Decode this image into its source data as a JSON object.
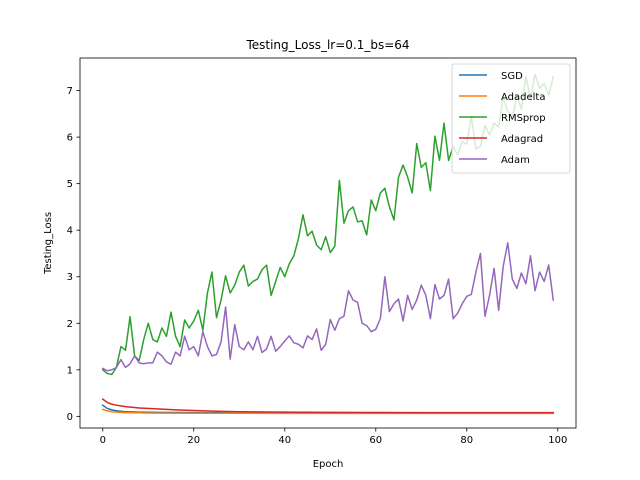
{
  "chart_data": {
    "type": "line",
    "title": "Testing_Loss_lr=0.1_bs=64",
    "xlabel": "Epoch",
    "ylabel": "Testing_Loss",
    "xlim": [
      -5,
      104
    ],
    "ylim": [
      -0.25,
      7.7
    ],
    "xticks": [
      0,
      20,
      40,
      60,
      80,
      100
    ],
    "yticks": [
      0,
      1,
      2,
      3,
      4,
      5,
      6,
      7
    ],
    "grid": false,
    "legend_position": "top-right",
    "series": [
      {
        "name": "SGD",
        "color": "#1f77b4",
        "points": [
          [
            0,
            0.24
          ],
          [
            1,
            0.17
          ],
          [
            2,
            0.14
          ],
          [
            3,
            0.12
          ],
          [
            5,
            0.1
          ],
          [
            8,
            0.09
          ],
          [
            12,
            0.085
          ],
          [
            20,
            0.08
          ],
          [
            30,
            0.075
          ],
          [
            40,
            0.072
          ],
          [
            60,
            0.07
          ],
          [
            80,
            0.07
          ],
          [
            99,
            0.07
          ]
        ]
      },
      {
        "name": "Adadelta",
        "color": "#ff7f0e",
        "points": [
          [
            0,
            0.15
          ],
          [
            1,
            0.12
          ],
          [
            2,
            0.1
          ],
          [
            3,
            0.09
          ],
          [
            5,
            0.08
          ],
          [
            8,
            0.075
          ],
          [
            12,
            0.07
          ],
          [
            20,
            0.068
          ],
          [
            30,
            0.066
          ],
          [
            40,
            0.065
          ],
          [
            60,
            0.064
          ],
          [
            80,
            0.064
          ],
          [
            99,
            0.064
          ]
        ]
      },
      {
        "name": "RMSprop",
        "color": "#2ca02c",
        "points": [
          [
            0,
            1.0
          ],
          [
            1,
            0.92
          ],
          [
            2,
            0.9
          ],
          [
            3,
            1.05
          ],
          [
            4,
            1.5
          ],
          [
            5,
            1.42
          ],
          [
            6,
            2.14
          ],
          [
            7,
            1.3
          ],
          [
            8,
            1.2
          ],
          [
            9,
            1.65
          ],
          [
            10,
            2.0
          ],
          [
            11,
            1.65
          ],
          [
            12,
            1.6
          ],
          [
            13,
            1.9
          ],
          [
            14,
            1.72
          ],
          [
            15,
            2.24
          ],
          [
            16,
            1.72
          ],
          [
            17,
            1.5
          ],
          [
            18,
            2.07
          ],
          [
            19,
            1.9
          ],
          [
            20,
            2.05
          ],
          [
            21,
            2.28
          ],
          [
            22,
            1.85
          ],
          [
            23,
            2.65
          ],
          [
            24,
            3.1
          ],
          [
            25,
            2.12
          ],
          [
            26,
            2.5
          ],
          [
            27,
            3.02
          ],
          [
            28,
            2.65
          ],
          [
            29,
            2.82
          ],
          [
            30,
            3.1
          ],
          [
            31,
            3.25
          ],
          [
            32,
            2.8
          ],
          [
            33,
            2.9
          ],
          [
            34,
            2.95
          ],
          [
            35,
            3.15
          ],
          [
            36,
            3.25
          ],
          [
            37,
            2.6
          ],
          [
            38,
            2.9
          ],
          [
            39,
            3.2
          ],
          [
            40,
            3.0
          ],
          [
            41,
            3.28
          ],
          [
            42,
            3.45
          ],
          [
            43,
            3.82
          ],
          [
            44,
            4.33
          ],
          [
            45,
            3.88
          ],
          [
            46,
            3.98
          ],
          [
            47,
            3.68
          ],
          [
            48,
            3.58
          ],
          [
            49,
            3.86
          ],
          [
            50,
            3.52
          ],
          [
            51,
            3.66
          ],
          [
            52,
            5.07
          ],
          [
            53,
            4.15
          ],
          [
            54,
            4.42
          ],
          [
            55,
            4.5
          ],
          [
            56,
            4.18
          ],
          [
            57,
            4.2
          ],
          [
            58,
            3.9
          ],
          [
            59,
            4.65
          ],
          [
            60,
            4.42
          ],
          [
            61,
            4.8
          ],
          [
            62,
            4.9
          ],
          [
            63,
            4.5
          ],
          [
            64,
            4.22
          ],
          [
            65,
            5.14
          ],
          [
            66,
            5.4
          ],
          [
            67,
            5.14
          ],
          [
            68,
            4.8
          ],
          [
            69,
            5.86
          ],
          [
            70,
            5.35
          ],
          [
            71,
            5.45
          ],
          [
            72,
            4.85
          ],
          [
            73,
            6.02
          ],
          [
            74,
            5.5
          ],
          [
            75,
            6.3
          ],
          [
            76,
            5.5
          ],
          [
            77,
            5.8
          ],
          [
            78,
            5.62
          ],
          [
            79,
            5.9
          ],
          [
            80,
            5.85
          ],
          [
            81,
            6.45
          ],
          [
            82,
            5.75
          ],
          [
            83,
            5.8
          ],
          [
            84,
            6.25
          ],
          [
            85,
            6.05
          ],
          [
            86,
            6.3
          ],
          [
            87,
            6.22
          ],
          [
            88,
            6.85
          ],
          [
            89,
            6.55
          ],
          [
            90,
            6.42
          ],
          [
            91,
            6.88
          ],
          [
            92,
            6.6
          ],
          [
            93,
            7.3
          ],
          [
            94,
            6.82
          ],
          [
            95,
            7.35
          ],
          [
            96,
            7.05
          ],
          [
            97,
            7.15
          ],
          [
            98,
            6.9
          ],
          [
            99,
            7.3
          ]
        ]
      },
      {
        "name": "Adagrad",
        "color": "#d62728",
        "points": [
          [
            0,
            0.37
          ],
          [
            1,
            0.3
          ],
          [
            2,
            0.26
          ],
          [
            3,
            0.24
          ],
          [
            5,
            0.21
          ],
          [
            8,
            0.18
          ],
          [
            12,
            0.16
          ],
          [
            16,
            0.14
          ],
          [
            20,
            0.125
          ],
          [
            25,
            0.11
          ],
          [
            30,
            0.1
          ],
          [
            40,
            0.09
          ],
          [
            50,
            0.085
          ],
          [
            60,
            0.082
          ],
          [
            70,
            0.08
          ],
          [
            80,
            0.08
          ],
          [
            90,
            0.08
          ],
          [
            99,
            0.08
          ]
        ]
      },
      {
        "name": "Adam",
        "color": "#9467bd",
        "points": [
          [
            0,
            1.03
          ],
          [
            1,
            0.98
          ],
          [
            2,
            1.0
          ],
          [
            3,
            1.05
          ],
          [
            4,
            1.22
          ],
          [
            5,
            1.05
          ],
          [
            6,
            1.13
          ],
          [
            7,
            1.3
          ],
          [
            8,
            1.15
          ],
          [
            9,
            1.13
          ],
          [
            10,
            1.15
          ],
          [
            11,
            1.15
          ],
          [
            12,
            1.38
          ],
          [
            13,
            1.3
          ],
          [
            14,
            1.17
          ],
          [
            15,
            1.12
          ],
          [
            16,
            1.38
          ],
          [
            17,
            1.3
          ],
          [
            18,
            1.72
          ],
          [
            19,
            1.43
          ],
          [
            20,
            1.5
          ],
          [
            21,
            1.3
          ],
          [
            22,
            1.82
          ],
          [
            23,
            1.5
          ],
          [
            24,
            1.3
          ],
          [
            25,
            1.33
          ],
          [
            26,
            1.6
          ],
          [
            27,
            2.35
          ],
          [
            28,
            1.23
          ],
          [
            29,
            1.97
          ],
          [
            30,
            1.5
          ],
          [
            31,
            1.43
          ],
          [
            32,
            1.6
          ],
          [
            33,
            1.43
          ],
          [
            34,
            1.72
          ],
          [
            35,
            1.37
          ],
          [
            36,
            1.45
          ],
          [
            37,
            1.72
          ],
          [
            38,
            1.4
          ],
          [
            39,
            1.5
          ],
          [
            40,
            1.62
          ],
          [
            41,
            1.73
          ],
          [
            42,
            1.58
          ],
          [
            43,
            1.55
          ],
          [
            44,
            1.47
          ],
          [
            45,
            1.73
          ],
          [
            46,
            1.65
          ],
          [
            47,
            1.88
          ],
          [
            48,
            1.42
          ],
          [
            49,
            1.55
          ],
          [
            50,
            2.08
          ],
          [
            51,
            1.85
          ],
          [
            52,
            2.1
          ],
          [
            53,
            2.15
          ],
          [
            54,
            2.7
          ],
          [
            55,
            2.5
          ],
          [
            56,
            2.45
          ],
          [
            57,
            2.0
          ],
          [
            58,
            1.95
          ],
          [
            59,
            1.82
          ],
          [
            60,
            1.87
          ],
          [
            61,
            2.1
          ],
          [
            62,
            3.0
          ],
          [
            63,
            2.25
          ],
          [
            64,
            2.42
          ],
          [
            65,
            2.52
          ],
          [
            66,
            2.05
          ],
          [
            67,
            2.6
          ],
          [
            68,
            2.3
          ],
          [
            69,
            2.5
          ],
          [
            70,
            2.82
          ],
          [
            71,
            2.6
          ],
          [
            72,
            2.1
          ],
          [
            73,
            2.83
          ],
          [
            74,
            2.52
          ],
          [
            75,
            2.6
          ],
          [
            76,
            2.95
          ],
          [
            77,
            2.1
          ],
          [
            78,
            2.22
          ],
          [
            79,
            2.42
          ],
          [
            80,
            2.58
          ],
          [
            81,
            2.62
          ],
          [
            82,
            3.1
          ],
          [
            83,
            3.5
          ],
          [
            84,
            2.15
          ],
          [
            85,
            2.6
          ],
          [
            86,
            3.18
          ],
          [
            87,
            2.28
          ],
          [
            88,
            3.22
          ],
          [
            89,
            3.73
          ],
          [
            90,
            2.95
          ],
          [
            91,
            2.75
          ],
          [
            92,
            3.08
          ],
          [
            93,
            2.85
          ],
          [
            94,
            3.45
          ],
          [
            95,
            2.7
          ],
          [
            96,
            3.1
          ],
          [
            97,
            2.9
          ],
          [
            98,
            3.25
          ],
          [
            99,
            2.5
          ]
        ]
      }
    ]
  }
}
